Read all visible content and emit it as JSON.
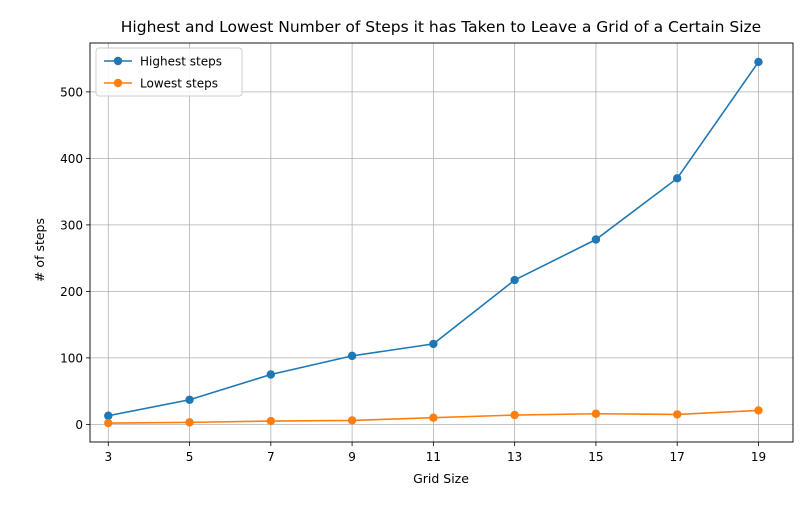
{
  "chart_data": {
    "type": "line",
    "title": "Highest and Lowest Number of Steps it has Taken to Leave a Grid of a Certain Size",
    "xlabel": "Grid Size",
    "ylabel": "# of steps",
    "x": [
      3,
      5,
      7,
      9,
      11,
      13,
      15,
      17,
      19
    ],
    "x_ticks": [
      "3",
      "5",
      "7",
      "9",
      "11",
      "13",
      "15",
      "17",
      "19"
    ],
    "y_ticks": [
      0,
      100,
      200,
      300,
      400,
      500
    ],
    "xlim": [
      2.55,
      19.85
    ],
    "ylim": [
      -26.5,
      573.5
    ],
    "grid": true,
    "legend_position": "top-left",
    "series": [
      {
        "name": "Highest steps",
        "color": "#1f77b4",
        "values": [
          13,
          37,
          75,
          103,
          121,
          217,
          278,
          370,
          545
        ]
      },
      {
        "name": "Lowest steps",
        "color": "#ff7f0e",
        "values": [
          2,
          3,
          5,
          6,
          10,
          14,
          16,
          15,
          21
        ]
      }
    ]
  }
}
